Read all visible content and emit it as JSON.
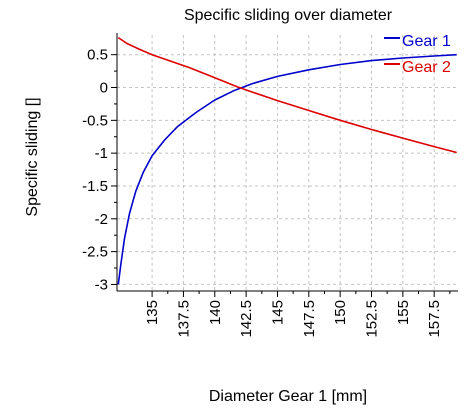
{
  "chart_data": {
    "type": "line",
    "title": "Specific sliding over diameter",
    "xlabel": "Diameter Gear 1 [mm]",
    "ylabel": "Specific sliding []",
    "xlim": [
      132.2,
      159.4
    ],
    "ylim": [
      -3.1,
      0.8
    ],
    "xticks": [
      135,
      137.5,
      140,
      142.5,
      145,
      147.5,
      150,
      152.5,
      155,
      157.5
    ],
    "xtick_labels": [
      "135",
      "137.5",
      "140",
      "142.5",
      "145",
      "147.5",
      "150",
      "152.5",
      "155",
      "157.5"
    ],
    "yticks": [
      0.5,
      0,
      -0.5,
      -1,
      -1.5,
      -2,
      -2.5,
      -3
    ],
    "ytick_labels": [
      "0.5",
      "0",
      "-0.5",
      "-1",
      "-1.5",
      "-2",
      "-2.5",
      "-3"
    ],
    "grid": true,
    "legend_position": "top-right",
    "series": [
      {
        "name": "Gear 1",
        "color": "#0000cc",
        "x": [
          132.3,
          132.5,
          132.8,
          133.2,
          133.7,
          134.3,
          135.0,
          136.0,
          137.0,
          138.5,
          140.0,
          141.5,
          143.0,
          145.0,
          147.5,
          150.0,
          152.5,
          155.0,
          157.5,
          159.3
        ],
        "y": [
          -3.0,
          -2.7,
          -2.3,
          -1.92,
          -1.58,
          -1.29,
          -1.04,
          -0.8,
          -0.6,
          -0.38,
          -0.19,
          -0.05,
          0.06,
          0.17,
          0.27,
          0.35,
          0.41,
          0.45,
          0.48,
          0.5
        ]
      },
      {
        "name": "Gear 2",
        "color": "#dd0000",
        "x": [
          132.3,
          133.0,
          134.0,
          135.0,
          136.5,
          138.0,
          140.0,
          141.8,
          143.0,
          145.0,
          147.5,
          150.0,
          152.5,
          155.0,
          157.5,
          159.3
        ],
        "y": [
          0.76,
          0.67,
          0.58,
          0.5,
          0.4,
          0.3,
          0.15,
          0.01,
          -0.07,
          -0.2,
          -0.35,
          -0.5,
          -0.64,
          -0.77,
          -0.9,
          -0.99
        ]
      }
    ]
  }
}
